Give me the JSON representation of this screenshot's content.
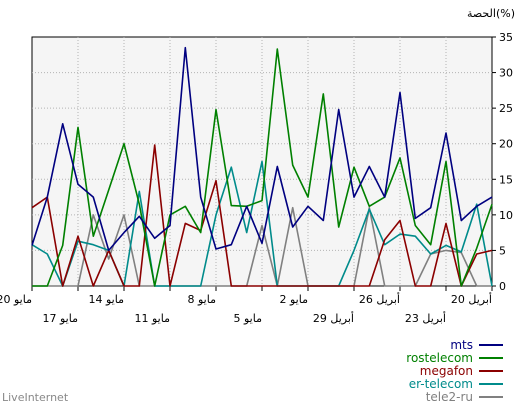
{
  "chart_data": {
    "type": "line",
    "ylabel": "الحصة(%)",
    "ylim": [
      0,
      35
    ],
    "yticks": [
      0,
      5,
      10,
      15,
      20,
      25,
      30,
      35
    ],
    "x_count": 31,
    "x_reversed": true,
    "x_tick_labels_top": [
      {
        "i": 0,
        "label": "20 أبريل"
      },
      {
        "i": 6,
        "label": "26 أبريل"
      },
      {
        "i": 12,
        "label": "2 مايو"
      },
      {
        "i": 18,
        "label": "8 مايو"
      },
      {
        "i": 24,
        "label": "14 مايو"
      },
      {
        "i": 30,
        "label": "20 مايو"
      }
    ],
    "x_tick_labels_bottom": [
      {
        "i": 3,
        "label": "23 أبريل"
      },
      {
        "i": 9,
        "label": "29 أبريل"
      },
      {
        "i": 15,
        "label": "5 مايو"
      },
      {
        "i": 21,
        "label": "11 مايو"
      },
      {
        "i": 27,
        "label": "17 مايو"
      }
    ],
    "grid": true,
    "legend_position": "bottom-right",
    "series": [
      {
        "name": "mts",
        "color": "#000080",
        "values": [
          12.5,
          11.2,
          9.2,
          21.5,
          11,
          9.5,
          27.2,
          12.5,
          16.8,
          12.5,
          24.8,
          9.2,
          11.2,
          8.3,
          16.8,
          6,
          11.2,
          5.8,
          5.2,
          12.5,
          33.5,
          8.5,
          6.7,
          9.8,
          7.5,
          5,
          12.5,
          14.3,
          22.8,
          12.5,
          5.7
        ]
      },
      {
        "name": "rostelecom",
        "color": "#008000",
        "values": [
          11.5,
          5.3,
          0,
          17.5,
          5.8,
          8.5,
          18,
          12.5,
          11.2,
          16.7,
          8.3,
          27,
          12.5,
          17,
          33.3,
          12,
          11.2,
          11.3,
          24.8,
          7.5,
          11.2,
          10,
          0,
          11.5,
          20,
          13.5,
          7,
          22.3,
          5.7,
          0,
          0
        ]
      },
      {
        "name": "megafon",
        "color": "#8b0000",
        "values": [
          5,
          4.5,
          0,
          8.8,
          0,
          0,
          9.2,
          6.5,
          0,
          0,
          0,
          0,
          0,
          0,
          0,
          0,
          0,
          0,
          14.8,
          7.8,
          8.8,
          0,
          19.8,
          0,
          0,
          5,
          0,
          7,
          0,
          12.5,
          11
        ]
      },
      {
        "name": "er-telecom",
        "color": "#008b8b",
        "values": [
          0,
          11.5,
          4.8,
          5.7,
          4.5,
          7,
          7.3,
          5.8,
          10.8,
          5,
          0,
          0,
          0,
          0,
          0,
          17.5,
          7.5,
          16.7,
          10,
          0,
          0,
          0,
          0,
          13.3,
          0,
          5,
          5.8,
          6.3,
          0,
          4.5,
          5.8
        ]
      },
      {
        "name": "tele2-ru",
        "color": "#808080",
        "values": [
          0,
          0,
          4.7,
          5,
          4.5,
          0,
          0,
          0,
          11,
          0,
          0,
          0,
          0,
          11,
          0,
          8.5,
          0,
          0,
          0,
          0,
          0,
          0,
          0,
          0,
          10,
          3.8,
          10,
          0,
          0,
          0,
          0
        ]
      }
    ]
  },
  "watermark": "LiveInternet"
}
